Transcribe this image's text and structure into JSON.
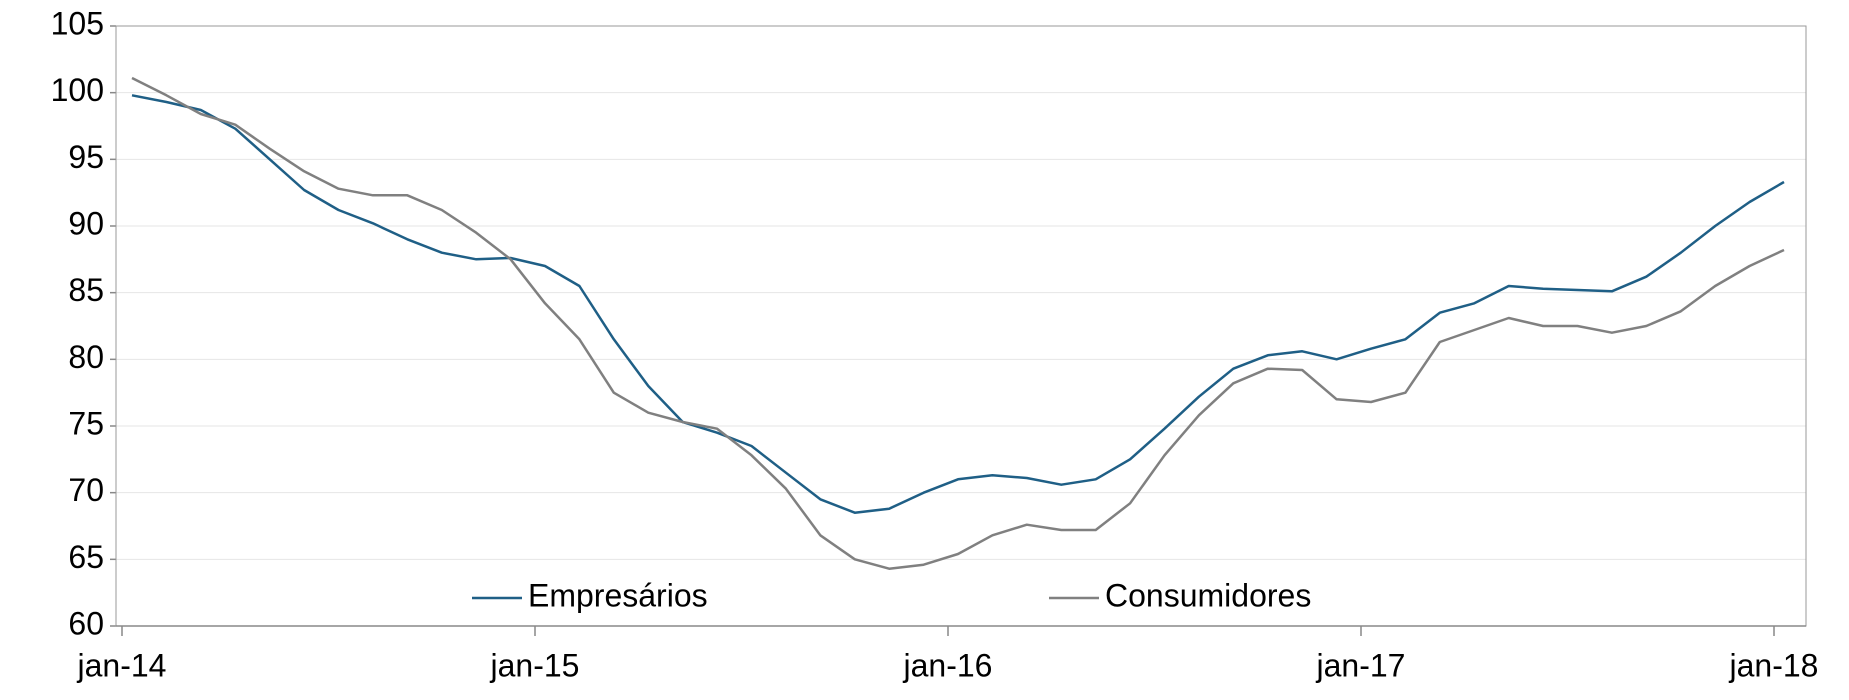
{
  "chart_data": {
    "type": "line",
    "categories": [
      "jan-14",
      null,
      null,
      null,
      null,
      null,
      null,
      null,
      null,
      null,
      null,
      null,
      "jan-15",
      null,
      null,
      null,
      null,
      null,
      null,
      null,
      null,
      null,
      null,
      null,
      "jan-16",
      null,
      null,
      null,
      null,
      null,
      null,
      null,
      null,
      null,
      null,
      null,
      "jan-17",
      null,
      null,
      null,
      null,
      null,
      null,
      null,
      null,
      null,
      null,
      null,
      "jan-18"
    ],
    "series": [
      {
        "name": "Empresários",
        "color": "#1f5f86",
        "values": [
          99.8,
          99.3,
          98.7,
          97.3,
          95,
          92.7,
          91.2,
          90.2,
          89,
          88,
          87.5,
          87.6,
          87,
          85.5,
          81.5,
          78,
          75.3,
          74.5,
          73.5,
          71.5,
          69.5,
          68.5,
          68.8,
          70,
          71,
          71.3,
          71.1,
          70.6,
          71,
          72.5,
          74.8,
          77.2,
          79.3,
          80.3,
          80.6,
          80,
          80.8,
          81.5,
          83.5,
          84.2,
          85.5,
          85.3,
          85.2,
          85.1,
          86.2,
          88,
          90,
          91.8,
          93.3
        ]
      },
      {
        "name": "Consumidores",
        "color": "#808080",
        "values": [
          101.1,
          99.8,
          98.4,
          97.6,
          95.8,
          94.1,
          92.8,
          92.3,
          92.3,
          91.2,
          89.5,
          87.5,
          84.2,
          81.5,
          77.5,
          76,
          75.3,
          74.8,
          72.8,
          70.3,
          66.8,
          65,
          64.3,
          64.6,
          65.4,
          66.8,
          67.6,
          67.2,
          67.2,
          69.2,
          72.8,
          75.8,
          78.2,
          79.3,
          79.2,
          77,
          76.8,
          77.5,
          81.3,
          82.2,
          83.1,
          82.5,
          82.5,
          82,
          82.5,
          83.6,
          85.5,
          87,
          88.2
        ]
      }
    ],
    "ylim": [
      60,
      105
    ],
    "yticks": [
      60,
      65,
      70,
      75,
      80,
      85,
      90,
      95,
      100,
      105
    ],
    "grid": true
  }
}
